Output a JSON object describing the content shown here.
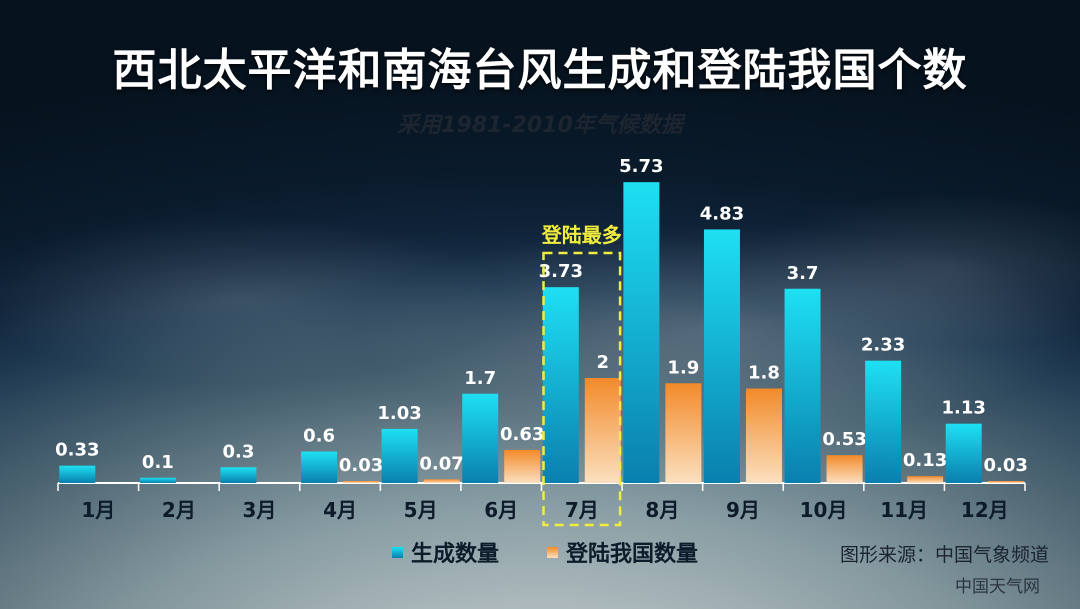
{
  "title": "西北太平洋和南海台风生成和登陆我国个数",
  "subtitle": "采用1981-2010年气候数据",
  "highlight_label": "登陆最多",
  "source": "图形来源：中国气象频道",
  "watermark": "中国天气网",
  "colors": {
    "generated_top": "#1ee0f2",
    "generated_bottom": "#0a7fae",
    "landfall_top": "#f28a2a",
    "landfall_bottom": "#fbe0bf",
    "highlight": "#f2ec3c",
    "axis": "#ffffff"
  },
  "chart_data": {
    "type": "bar",
    "categories": [
      "1月",
      "2月",
      "3月",
      "4月",
      "5月",
      "6月",
      "7月",
      "8月",
      "9月",
      "10月",
      "11月",
      "12月"
    ],
    "series": [
      {
        "name": "生成数量",
        "values": [
          0.33,
          0.1,
          0.3,
          0.6,
          1.03,
          1.7,
          3.73,
          5.73,
          4.83,
          3.7,
          2.33,
          1.13
        ],
        "labels": [
          "0.33",
          "0.1",
          "0.3",
          "0.6",
          "1.03",
          "1.7",
          "3.73",
          "5.73",
          "4.83",
          "3.7",
          "2.33",
          "1.13"
        ]
      },
      {
        "name": "登陆我国数量",
        "values": [
          null,
          null,
          null,
          0.03,
          0.07,
          0.63,
          2,
          1.9,
          1.8,
          0.53,
          0.13,
          0.03
        ],
        "labels": [
          "",
          "",
          "",
          "0.03",
          "0.07",
          "0.63",
          "2",
          "1.9",
          "1.8",
          "0.53",
          "0.13",
          "0.03"
        ]
      }
    ],
    "ylim": [
      0,
      6
    ],
    "highlight_category": "7月",
    "legend_position": "bottom",
    "grid": false
  }
}
